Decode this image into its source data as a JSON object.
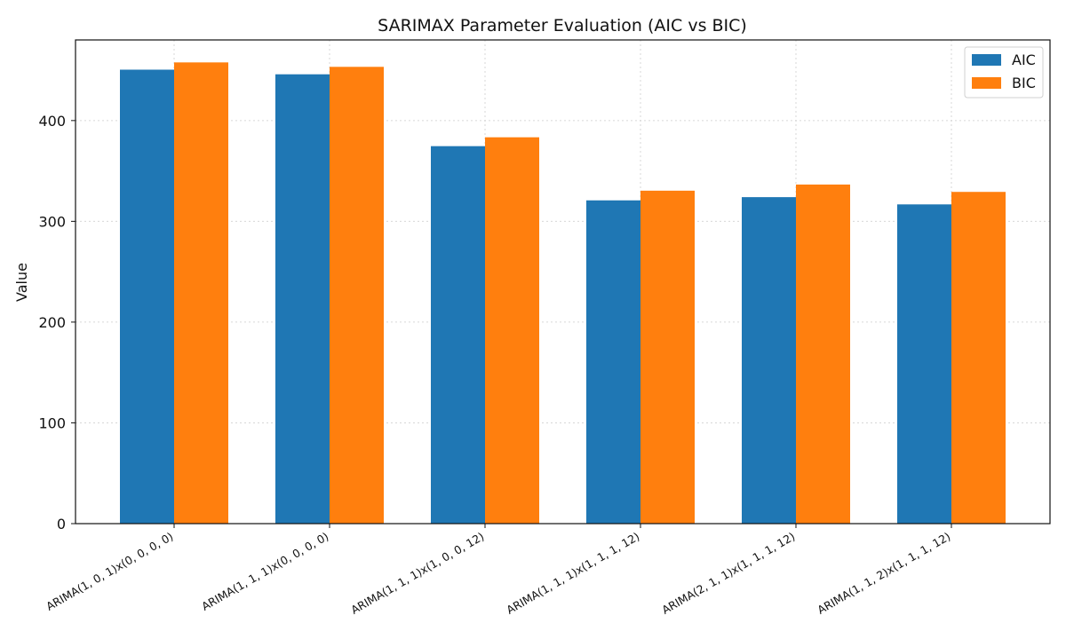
{
  "chart_data": {
    "type": "bar",
    "title": "SARIMAX Parameter Evaluation (AIC vs BIC)",
    "xlabel": "",
    "ylabel": "Value",
    "categories": [
      "ARIMA(1, 0, 1)x(0, 0, 0, 0)",
      "ARIMA(1, 1, 1)x(0, 0, 0, 0)",
      "ARIMA(1, 1, 1)x(1, 0, 0, 12)",
      "ARIMA(1, 1, 1)x(1, 1, 1, 12)",
      "ARIMA(2, 1, 1)x(1, 1, 1, 12)",
      "ARIMA(1, 1, 2)x(1, 1, 1, 12)"
    ],
    "series": [
      {
        "name": "AIC",
        "color": "#1f77b4",
        "values": [
          450.5,
          445.9,
          374.6,
          320.8,
          324.0,
          316.8
        ]
      },
      {
        "name": "BIC",
        "color": "#ff7f0e",
        "values": [
          457.7,
          453.3,
          383.4,
          330.4,
          336.5,
          329.2
        ]
      }
    ],
    "ylim": [
      0,
      480
    ],
    "yticks": [
      0,
      100,
      200,
      300,
      400
    ],
    "grid": true,
    "legend": "top-right"
  }
}
